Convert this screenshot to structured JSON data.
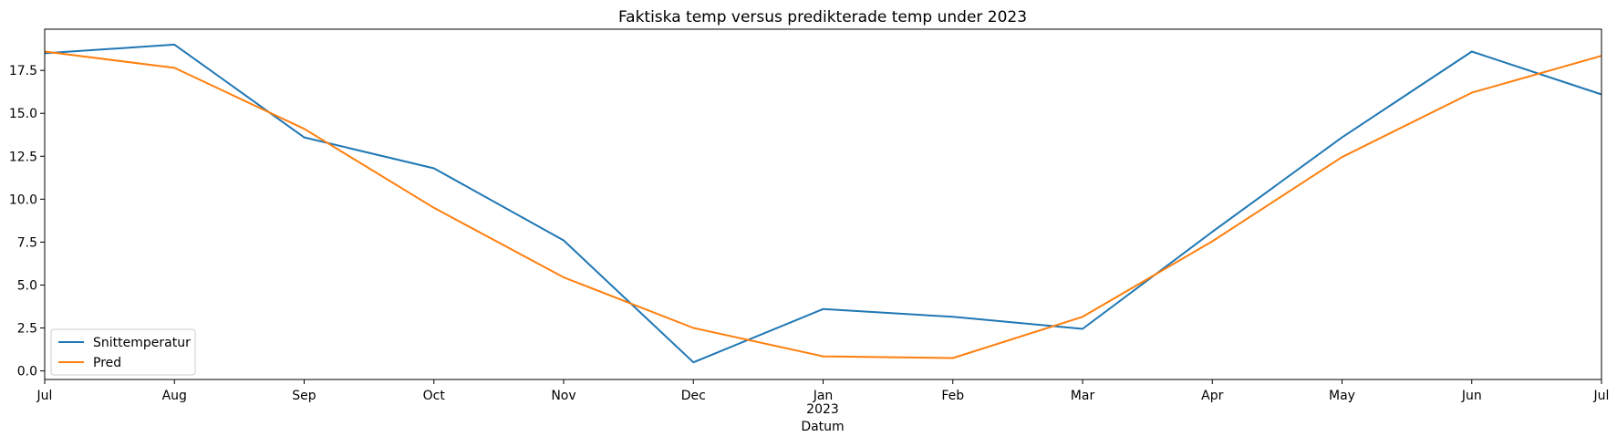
{
  "chart_data": {
    "type": "line",
    "title": "Faktiska temp versus predikterade temp under 2023",
    "xlabel": "Datum",
    "ylabel": "",
    "x": [
      "2022-07",
      "2022-08",
      "2022-09",
      "2022-10",
      "2022-11",
      "2022-12",
      "2023-01",
      "2023-02",
      "2023-03",
      "2023-04",
      "2023-05",
      "2023-06",
      "2023-07"
    ],
    "x_tick_labels": [
      "Jul",
      "Aug",
      "Sep",
      "Oct",
      "Nov",
      "Dec",
      "Jan",
      "Feb",
      "Mar",
      "Apr",
      "May",
      "Jun",
      "Jul"
    ],
    "x_year_label": "2023",
    "y_tick_labels": [
      "0.0",
      "2.5",
      "5.0",
      "7.5",
      "10.0",
      "12.5",
      "15.0",
      "17.5"
    ],
    "ylim": [
      -0.5,
      19.9
    ],
    "grid": false,
    "legend_position": "lower-left",
    "series": [
      {
        "name": "Snittemperatur",
        "color": "#1f77b4",
        "values": [
          18.5,
          19.0,
          13.6,
          11.8,
          7.6,
          0.5,
          3.6,
          3.15,
          2.45,
          8.1,
          13.6,
          18.6,
          16.1
        ]
      },
      {
        "name": "Pred",
        "color": "#ff7f0e",
        "values": [
          18.6,
          17.65,
          14.1,
          9.5,
          5.45,
          2.5,
          0.85,
          0.75,
          3.15,
          7.55,
          12.45,
          16.2,
          18.35
        ]
      }
    ]
  }
}
